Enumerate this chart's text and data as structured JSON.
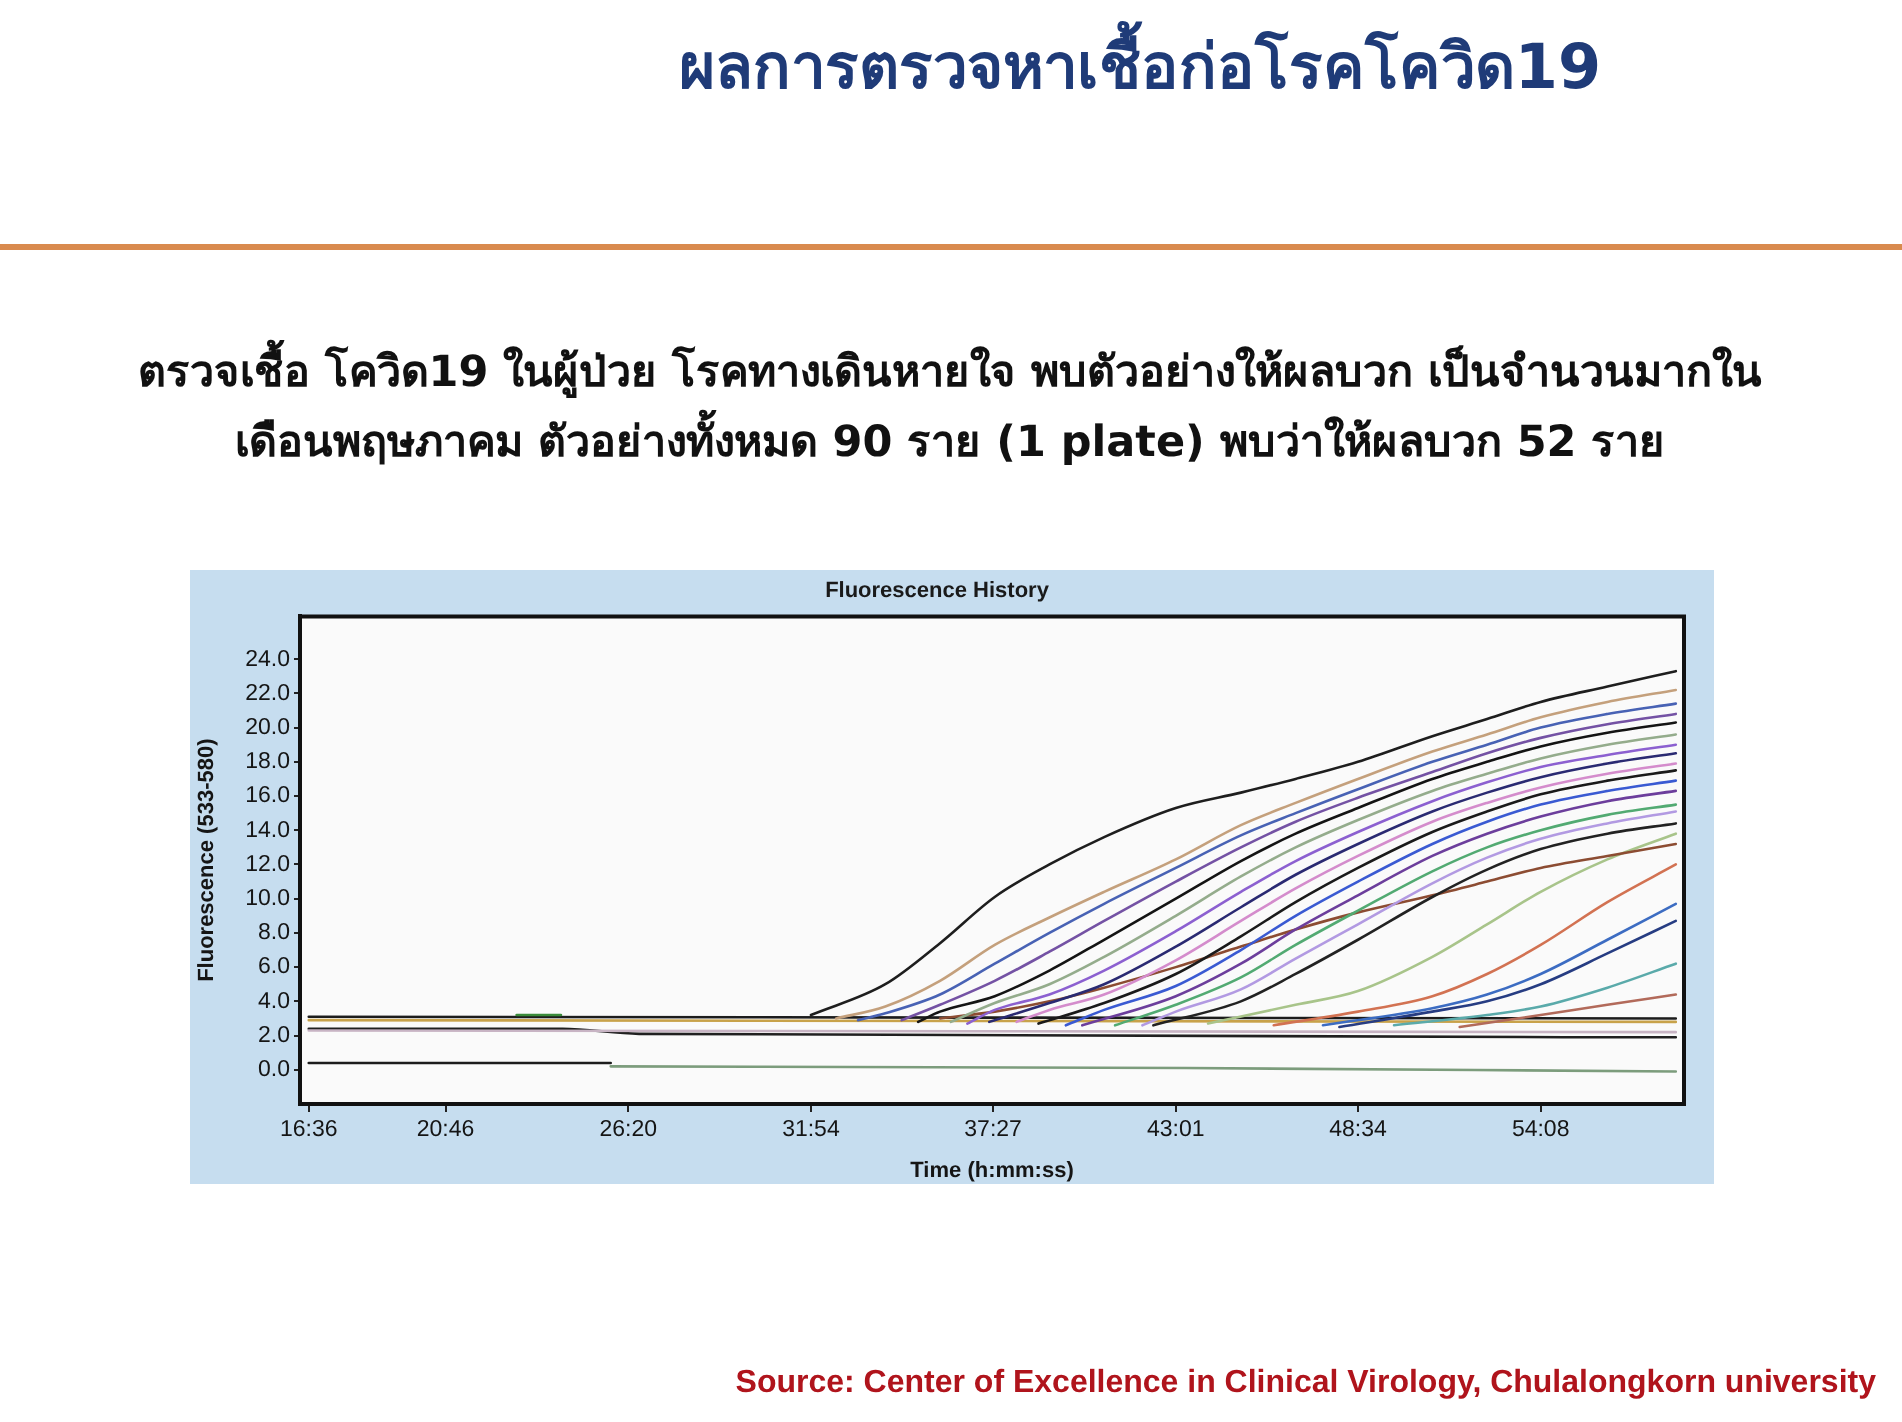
{
  "chart_data": {
    "type": "line",
    "title": "ผลการตรวจหาเชื้อก่อโรคโควิด19",
    "subtitle": "ตรวจเชื้อ โควิด19 ในผู้ป่วย โรคทางเดินหายใจ พบตัวอย่างให้ผลบวก เป็นจำนวนมากในเดือนพฤษภาคม ตัวอย่างทั้งหมด 90 ราย (1 plate) พบว่าให้ผลบวก 52 ราย",
    "annotations": [
      "Fluorescence History",
      "Source: Center of Excellence in Clinical Virology, Chulalongkorn university"
    ],
    "xlabel": "Time (h:mm:ss)",
    "ylabel": "Fluorescence (533-580)",
    "xlim": [
      980,
      3510
    ],
    "xticks": [
      {
        "value": 996,
        "label": "16:36"
      },
      {
        "value": 1246,
        "label": "20:46"
      },
      {
        "value": 1580,
        "label": "26:20"
      },
      {
        "value": 1914,
        "label": "31:54"
      },
      {
        "value": 2247,
        "label": "37:27"
      },
      {
        "value": 2581,
        "label": "43:01"
      },
      {
        "value": 2914,
        "label": "48:34"
      },
      {
        "value": 3248,
        "label": "54:08"
      }
    ],
    "ylim": [
      -2,
      26.5
    ],
    "yticks": [
      {
        "value": 0,
        "label": "0.0"
      },
      {
        "value": 2,
        "label": "2.0"
      },
      {
        "value": 4,
        "label": "4.0"
      },
      {
        "value": 6,
        "label": "6.0"
      },
      {
        "value": 8,
        "label": "8.0"
      },
      {
        "value": 10,
        "label": "10.0"
      },
      {
        "value": 12,
        "label": "12.0"
      },
      {
        "value": 14,
        "label": "14.0"
      },
      {
        "value": 16,
        "label": "16.0"
      },
      {
        "value": 18,
        "label": "18.0"
      },
      {
        "value": 20,
        "label": "20.0"
      },
      {
        "value": 22,
        "label": "22.0"
      },
      {
        "value": 24,
        "label": "24.0"
      }
    ],
    "series": [
      {
        "color": "#1e1e1e",
        "x": [
          1914,
          2050,
          2150,
          2250,
          2350,
          2450,
          2581,
          2700,
          2800,
          2914,
          3050,
          3150,
          3248,
          3370,
          3495
        ],
        "values": [
          3.2,
          5.0,
          7.4,
          10.1,
          12.0,
          13.6,
          15.3,
          16.2,
          17.0,
          18.0,
          19.5,
          20.5,
          21.5,
          22.4,
          23.3
        ]
      },
      {
        "color": "#c4a07c",
        "x": [
          1960,
          2050,
          2150,
          2250,
          2350,
          2450,
          2581,
          2700,
          2800,
          2914,
          3050,
          3150,
          3248,
          3370,
          3495
        ],
        "values": [
          3.0,
          3.7,
          5.2,
          7.3,
          8.9,
          10.4,
          12.3,
          14.3,
          15.6,
          17.0,
          18.6,
          19.6,
          20.6,
          21.5,
          22.2
        ]
      },
      {
        "color": "#4862b4",
        "x": [
          2000,
          2050,
          2150,
          2250,
          2350,
          2450,
          2581,
          2700,
          2800,
          2914,
          3050,
          3150,
          3248,
          3370,
          3495
        ],
        "values": [
          2.9,
          3.3,
          4.4,
          6.2,
          8.0,
          9.7,
          11.8,
          13.7,
          15.0,
          16.4,
          18.0,
          19.0,
          20.0,
          20.8,
          21.4
        ]
      },
      {
        "color": "#7452a4",
        "x": [
          2080,
          2150,
          2250,
          2350,
          2450,
          2581,
          2700,
          2800,
          2914,
          3050,
          3150,
          3248,
          3370,
          3495
        ],
        "values": [
          2.9,
          3.8,
          5.2,
          6.9,
          8.7,
          11.0,
          13.0,
          14.5,
          15.9,
          17.4,
          18.5,
          19.4,
          20.2,
          20.8
        ]
      },
      {
        "color": "#141414",
        "x": [
          2110,
          2150,
          2250,
          2350,
          2450,
          2581,
          2700,
          2800,
          2914,
          3050,
          3150,
          3248,
          3370,
          3495
        ],
        "values": [
          2.8,
          3.4,
          4.3,
          5.8,
          7.6,
          10.0,
          12.2,
          13.8,
          15.3,
          17.0,
          18.0,
          18.9,
          19.7,
          20.3
        ]
      },
      {
        "color": "#94ac8c",
        "x": [
          2170,
          2250,
          2350,
          2450,
          2581,
          2700,
          2800,
          2914,
          3050,
          3150,
          3248,
          3370,
          3495
        ],
        "values": [
          2.8,
          3.9,
          5.0,
          6.6,
          9.0,
          11.3,
          13.0,
          14.6,
          16.3,
          17.3,
          18.2,
          19.0,
          19.6
        ]
      },
      {
        "color": "#8c60d0",
        "x": [
          2200,
          2250,
          2350,
          2450,
          2581,
          2700,
          2800,
          2914,
          3050,
          3150,
          3248,
          3370,
          3495
        ],
        "values": [
          2.7,
          3.5,
          4.4,
          5.8,
          8.1,
          10.4,
          12.2,
          13.9,
          15.7,
          16.8,
          17.7,
          18.4,
          19.0
        ]
      },
      {
        "color": "#2a2a72",
        "x": [
          2240,
          2350,
          2450,
          2581,
          2700,
          2800,
          2914,
          3050,
          3150,
          3248,
          3370,
          3495
        ],
        "values": [
          2.8,
          3.9,
          5.0,
          7.2,
          9.5,
          11.4,
          13.2,
          15.1,
          16.2,
          17.1,
          17.9,
          18.5
        ]
      },
      {
        "color": "#d48ccc",
        "x": [
          2290,
          2350,
          2450,
          2581,
          2700,
          2800,
          2914,
          3050,
          3150,
          3248,
          3370,
          3495
        ],
        "values": [
          2.8,
          3.5,
          4.4,
          6.4,
          8.7,
          10.6,
          12.5,
          14.5,
          15.6,
          16.5,
          17.3,
          17.9
        ]
      },
      {
        "color": "#1a1a1a",
        "x": [
          2330,
          2450,
          2581,
          2700,
          2800,
          2914,
          3050,
          3150,
          3248,
          3370,
          3495
        ],
        "values": [
          2.7,
          3.9,
          5.6,
          7.8,
          9.8,
          11.8,
          13.9,
          15.1,
          16.1,
          16.9,
          17.5
        ]
      },
      {
        "color": "#3a5ad2",
        "x": [
          2380,
          2450,
          2581,
          2700,
          2800,
          2914,
          3050,
          3150,
          3248,
          3370,
          3495
        ],
        "values": [
          2.6,
          3.5,
          4.9,
          7.0,
          9.0,
          11.0,
          13.2,
          14.5,
          15.5,
          16.3,
          16.9
        ]
      },
      {
        "color": "#6c3e9c",
        "x": [
          2410,
          2581,
          2700,
          2800,
          2914,
          3050,
          3150,
          3248,
          3370,
          3495
        ],
        "values": [
          2.6,
          4.3,
          6.2,
          8.2,
          10.2,
          12.5,
          13.8,
          14.8,
          15.7,
          16.3
        ]
      },
      {
        "color": "#52aa72",
        "x": [
          2470,
          2581,
          2700,
          2800,
          2914,
          3050,
          3150,
          3248,
          3370,
          3495
        ],
        "values": [
          2.6,
          3.8,
          5.4,
          7.3,
          9.3,
          11.6,
          13.0,
          14.0,
          14.9,
          15.5
        ]
      },
      {
        "color": "#b29ae2",
        "x": [
          2520,
          2581,
          2700,
          2800,
          2914,
          3050,
          3150,
          3248,
          3370,
          3495
        ],
        "values": [
          2.6,
          3.4,
          4.7,
          6.5,
          8.5,
          10.9,
          12.4,
          13.5,
          14.4,
          15.1
        ]
      },
      {
        "color": "#222222",
        "x": [
          2540,
          2700,
          2800,
          2914,
          3050,
          3150,
          3248,
          3370,
          3495
        ],
        "values": [
          2.6,
          4.0,
          5.6,
          7.6,
          10.1,
          11.7,
          12.9,
          13.8,
          14.4
        ]
      },
      {
        "color": "#8c4c32",
        "x": [
          2150,
          2250,
          2350,
          2450,
          2581,
          2700,
          2800,
          2914,
          3050,
          3150,
          3248,
          3370,
          3495
        ],
        "values": [
          3.0,
          3.4,
          4.0,
          4.8,
          6.0,
          7.2,
          8.2,
          9.2,
          10.2,
          11.0,
          11.8,
          12.5,
          13.2
        ]
      },
      {
        "color": "#a8c48a",
        "x": [
          2640,
          2800,
          2914,
          3050,
          3150,
          3248,
          3370,
          3495
        ],
        "values": [
          2.7,
          3.8,
          4.6,
          6.6,
          8.5,
          10.4,
          12.3,
          13.8
        ]
      },
      {
        "color": "#d27252",
        "x": [
          2760,
          2914,
          3050,
          3150,
          3248,
          3370,
          3495
        ],
        "values": [
          2.6,
          3.4,
          4.3,
          5.6,
          7.3,
          9.8,
          12.0
        ]
      },
      {
        "color": "#3c6cc2",
        "x": [
          2850,
          3050,
          3150,
          3248,
          3370,
          3495
        ],
        "values": [
          2.6,
          3.6,
          4.4,
          5.6,
          7.6,
          9.7
        ]
      },
      {
        "color": "#263c82",
        "x": [
          2880,
          3050,
          3150,
          3248,
          3370,
          3495
        ],
        "values": [
          2.5,
          3.4,
          4.0,
          5.0,
          6.8,
          8.7
        ]
      },
      {
        "color": "#5aaaaa",
        "x": [
          2980,
          3150,
          3248,
          3370,
          3495
        ],
        "values": [
          2.6,
          3.2,
          3.7,
          4.8,
          6.2
        ]
      },
      {
        "color": "#b26a5a",
        "x": [
          3100,
          3248,
          3370,
          3495
        ],
        "values": [
          2.5,
          3.2,
          3.8,
          4.4
        ]
      },
      {
        "color": "#3a8a3a",
        "x": [
          1376,
          1457
        ],
        "values": [
          3.2,
          3.2
        ]
      },
      {
        "color": "#1c1c1c",
        "x": [
          996,
          3495
        ],
        "values": [
          3.1,
          3.0
        ]
      },
      {
        "color": "#c8a24a",
        "x": [
          996,
          3495
        ],
        "values": [
          2.9,
          2.8
        ]
      },
      {
        "color": "#c8b4c4",
        "x": [
          996,
          3495
        ],
        "values": [
          2.3,
          2.2
        ]
      },
      {
        "color": "#202020",
        "x": [
          996,
          1460,
          1600,
          3495
        ],
        "values": [
          2.4,
          2.4,
          2.1,
          1.9
        ]
      },
      {
        "color": "#1c1c1c",
        "x": [
          996,
          1548
        ],
        "values": [
          0.4,
          0.4
        ]
      },
      {
        "color": "#7c9c7c",
        "x": [
          1548,
          2600,
          3495
        ],
        "values": [
          0.2,
          0.1,
          -0.1
        ]
      }
    ]
  }
}
